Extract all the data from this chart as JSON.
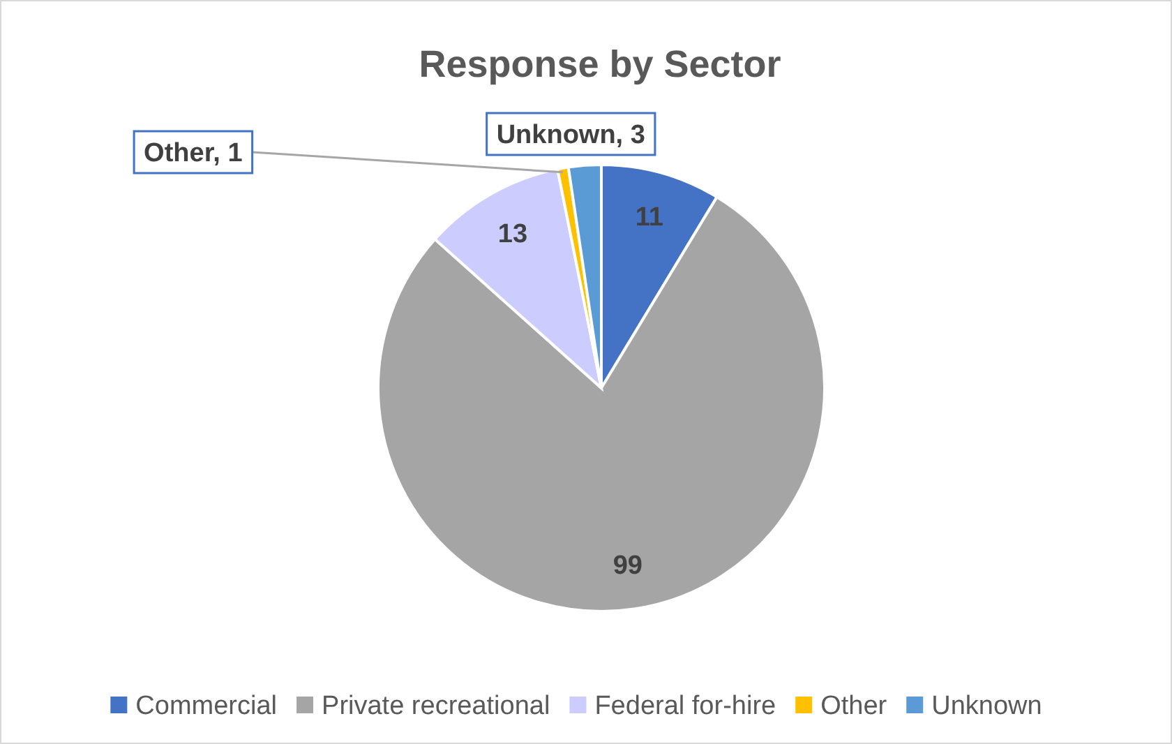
{
  "chart_data": {
    "type": "pie",
    "title": "Response by Sector",
    "categories": [
      "Commercial",
      "Private recreational",
      "Federal for-hire",
      "Other",
      "Unknown"
    ],
    "values": [
      11,
      99,
      13,
      1,
      3
    ],
    "colors": [
      "#4472c4",
      "#a5a5a5",
      "#ccccff",
      "#ffc000",
      "#5b9bd5"
    ],
    "value_labels": [
      "11",
      "99",
      "13",
      "Other, 1",
      "Unknown, 3"
    ],
    "legend": "bottom"
  }
}
